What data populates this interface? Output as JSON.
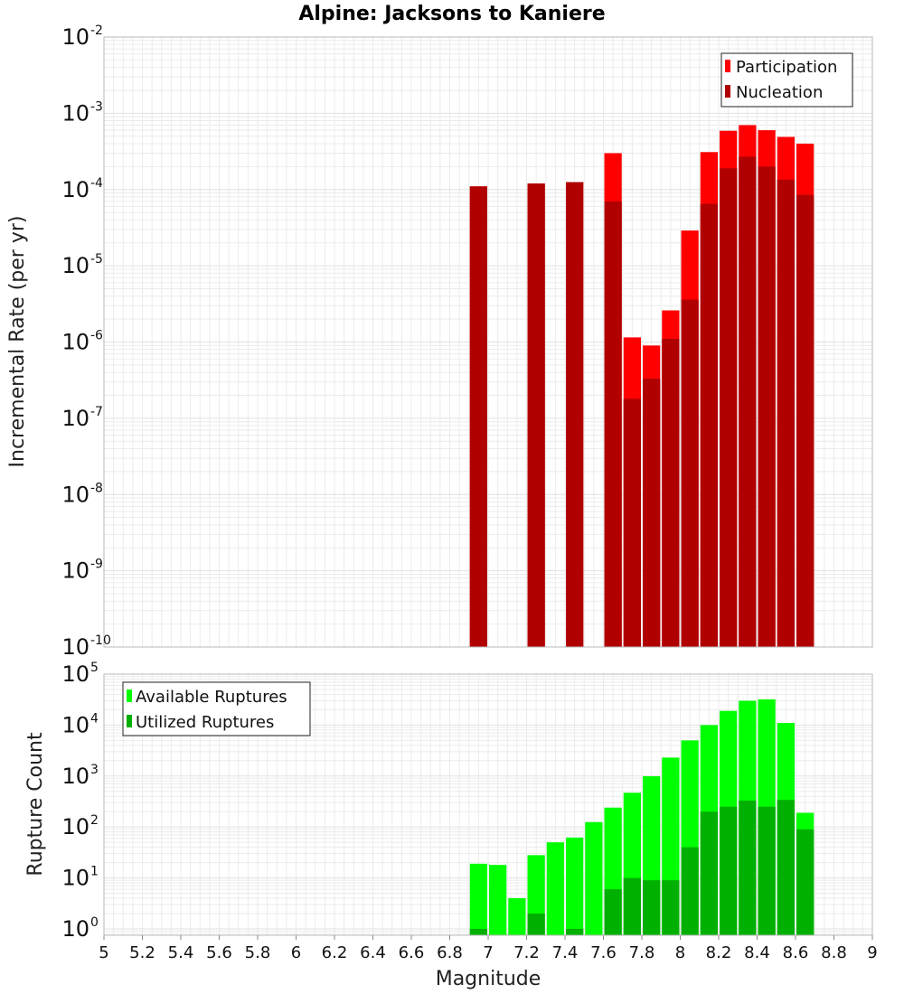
{
  "chart_data": [
    {
      "type": "bar",
      "title": "Alpine: Jacksons to Kaniere",
      "xlabel": "Magnitude",
      "ylabel": "Incremental Rate (per yr)",
      "xlim": [
        5,
        9
      ],
      "ylim": [
        1e-10,
        0.01
      ],
      "yscale": "log",
      "grid": true,
      "legend_position": "top-right",
      "bin_width": 0.1,
      "x": [
        6.95,
        7.25,
        7.45,
        7.65,
        7.75,
        7.85,
        7.95,
        8.05,
        8.15,
        8.25,
        8.35,
        8.45,
        8.55,
        8.65
      ],
      "series": [
        {
          "name": "Participation",
          "color": "#ff0000",
          "values": [
            0.00011,
            0.00012,
            0.000125,
            0.0003,
            1.15e-06,
            9e-07,
            2.6e-06,
            2.9e-05,
            0.00031,
            0.00059,
            0.0007,
            0.0006,
            0.00049,
            0.0004
          ]
        },
        {
          "name": "Nucleation",
          "color": "#b00000",
          "values": [
            0.00011,
            0.00012,
            0.000125,
            7e-05,
            1.8e-07,
            3.3e-07,
            1.1e-06,
            3.6e-06,
            6.5e-05,
            0.00019,
            0.00027,
            0.0002,
            0.000135,
            8.5e-05
          ]
        }
      ],
      "y_tick_exponents": [
        "-10",
        "-9",
        "-8",
        "-7",
        "-6",
        "-5",
        "-4",
        "-3",
        "-2"
      ]
    },
    {
      "type": "bar",
      "title": "",
      "xlabel": "Magnitude",
      "ylabel": "Rupture Count",
      "xlim": [
        5,
        9
      ],
      "ylim": [
        0.75,
        100000.0
      ],
      "yscale": "log",
      "grid": true,
      "legend_position": "top-left",
      "bin_width": 0.1,
      "x": [
        6.95,
        7.05,
        7.15,
        7.25,
        7.35,
        7.45,
        7.55,
        7.65,
        7.75,
        7.85,
        7.95,
        8.05,
        8.15,
        8.25,
        8.35,
        8.45,
        8.55,
        8.65
      ],
      "series": [
        {
          "name": "Available Ruptures",
          "color": "#00ff00",
          "values": [
            19,
            18,
            4,
            28,
            50,
            62,
            125,
            240,
            470,
            990,
            2300,
            5000,
            10000,
            19000,
            30000,
            32000,
            11000,
            190
          ]
        },
        {
          "name": "Utilized Ruptures",
          "color": "#00b000",
          "values": [
            1,
            0,
            0,
            2,
            0,
            1,
            0,
            6,
            10,
            9,
            9,
            40,
            200,
            250,
            330,
            250,
            340,
            90
          ]
        }
      ],
      "x_ticks": [
        "5",
        "5.2",
        "5.4",
        "5.6",
        "5.8",
        "6",
        "6.2",
        "6.4",
        "6.6",
        "6.8",
        "7",
        "7.2",
        "7.4",
        "7.6",
        "7.8",
        "8",
        "8.2",
        "8.4",
        "8.6",
        "8.8",
        "9"
      ],
      "y_tick_exponents": [
        "0",
        "1",
        "2",
        "3",
        "4",
        "5"
      ]
    }
  ]
}
